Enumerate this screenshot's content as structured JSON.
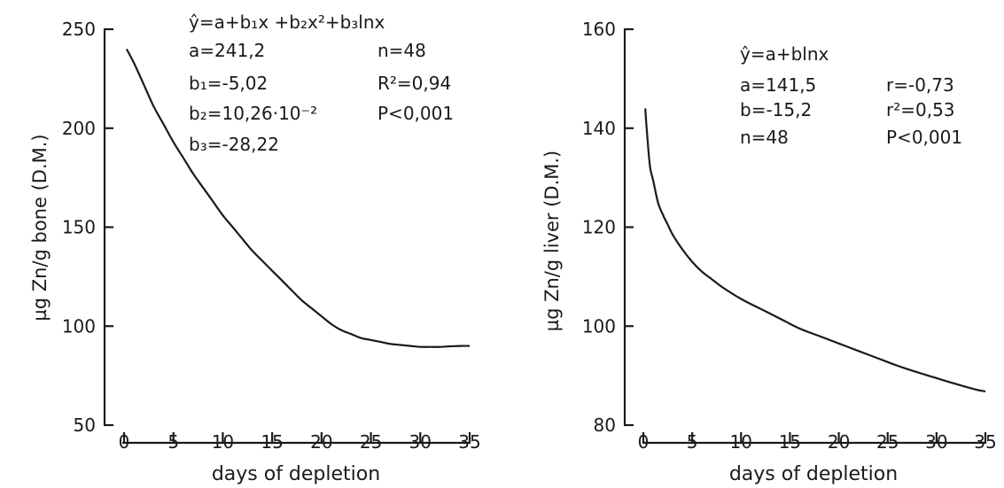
{
  "chart_data": [
    {
      "type": "line",
      "xlabel": "days of depletion",
      "ylabel": "µg Zn/g bone (D.M.)",
      "xlim": [
        0,
        35
      ],
      "ylim": [
        50,
        250
      ],
      "x_ticks": [
        "0",
        "5",
        "10",
        "15",
        "20",
        "25",
        "30",
        "35"
      ],
      "y_ticks": [
        "50",
        "100",
        "150",
        "200",
        "250"
      ],
      "grid": false,
      "series": [
        {
          "x": [
            0.25,
            1,
            2,
            3,
            4,
            5,
            6,
            7,
            8,
            9,
            10,
            11,
            12,
            13,
            14,
            15,
            16,
            17,
            18,
            19,
            20,
            21,
            22,
            23,
            24,
            25,
            26,
            27,
            28,
            29,
            30,
            31,
            32,
            33,
            34,
            35
          ],
          "values": [
            240,
            233,
            222,
            211,
            202,
            193,
            185,
            177,
            170,
            163,
            156,
            150,
            144,
            138,
            133,
            128,
            123,
            118,
            113,
            109,
            105,
            101,
            98,
            96,
            94,
            93,
            92,
            91,
            90.5,
            90,
            89.5,
            89.5,
            89.5,
            89.8,
            90,
            90
          ]
        }
      ],
      "annotation": {
        "equation": "ŷ=a+b₁x +b₂x²+b₃lnx",
        "params": [
          [
            "a=241,2",
            "n=48"
          ],
          [
            "b₁=-5,02",
            "R²=0,94"
          ],
          [
            "b₂=10,26·10⁻²",
            "P<0,001"
          ],
          [
            "b₃=-28,22",
            ""
          ]
        ]
      }
    },
    {
      "type": "line",
      "xlabel": "days of depletion",
      "ylabel": "µg Zn/g liver (D.M.)",
      "xlim": [
        0,
        35
      ],
      "ylim": [
        80,
        160
      ],
      "x_ticks": [
        "0",
        "5",
        "10",
        "15",
        "20",
        "25",
        "30",
        "35"
      ],
      "y_ticks": [
        "80",
        "100",
        "120",
        "140",
        "160"
      ],
      "grid": false,
      "series": [
        {
          "x": [
            0.2,
            0.3,
            0.5,
            0.7,
            1,
            1.5,
            2,
            2.5,
            3,
            4,
            5,
            6,
            7,
            8,
            10,
            12,
            14,
            16,
            18,
            20,
            22,
            24,
            26,
            28,
            30,
            32,
            34,
            35
          ],
          "values": [
            144,
            141,
            136,
            132,
            129.5,
            125,
            122.5,
            120.5,
            118.5,
            115.5,
            113,
            111,
            109.5,
            108,
            105.5,
            103.5,
            101.5,
            99.5,
            98,
            96.5,
            95,
            93.5,
            92,
            90.7,
            89.5,
            88.3,
            87.2,
            86.8
          ]
        }
      ],
      "annotation": {
        "equation": "ŷ=a+blnx",
        "params": [
          [
            "a=141,5",
            "r=-0,73"
          ],
          [
            "b=-15,2",
            "r²=0,53"
          ],
          [
            "n=48",
            "P<0,001"
          ]
        ]
      }
    }
  ]
}
